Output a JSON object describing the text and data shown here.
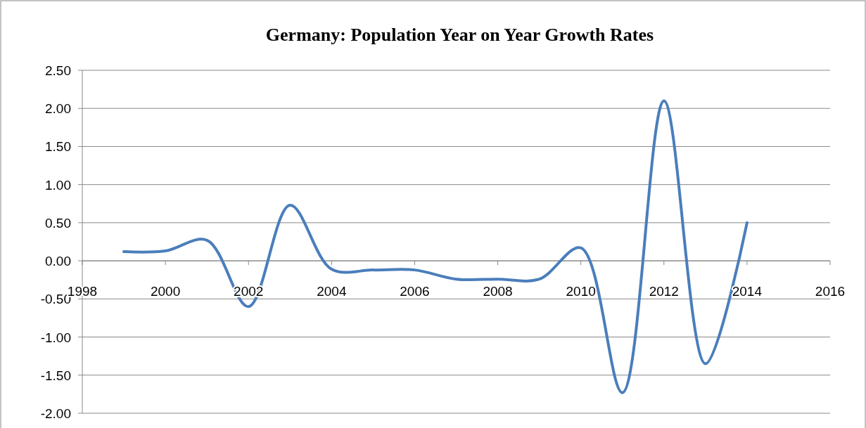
{
  "chart_data": {
    "type": "line",
    "title": "Germany: Population Year on Year Growth Rates",
    "x": [
      1999,
      2000,
      2001,
      2002,
      2003,
      2004,
      2005,
      2006,
      2007,
      2008,
      2009,
      2010,
      2011,
      2012,
      2013,
      2014
    ],
    "series": [
      {
        "color": "#4a7ebb",
        "values": [
          0.12,
          0.13,
          0.27,
          -0.6,
          0.73,
          -0.11,
          -0.12,
          -0.12,
          -0.24,
          -0.24,
          -0.24,
          0.17,
          -1.73,
          2.1,
          -1.35,
          0.5
        ]
      }
    ],
    "xlim": [
      1998,
      2016
    ],
    "xticks": [
      1998,
      2000,
      2002,
      2004,
      2006,
      2008,
      2010,
      2012,
      2014,
      2016
    ],
    "ylim": [
      -2,
      2.5
    ],
    "yticks": [
      {
        "value": -2,
        "label": "-2.00"
      },
      {
        "value": -1.5,
        "label": "-1.50"
      },
      {
        "value": -1,
        "label": "-1.00"
      },
      {
        "value": -0.5,
        "label": "-0.50"
      },
      {
        "value": 0,
        "label": "0.00"
      },
      {
        "value": 0.5,
        "label": "0.50"
      },
      {
        "value": 1,
        "label": "1.00"
      },
      {
        "value": 1.5,
        "label": "1.50"
      },
      {
        "value": 2,
        "label": "2.00"
      },
      {
        "value": 2.5,
        "label": "2.50"
      }
    ],
    "grid": "y",
    "marker": "none",
    "line_style": "solid"
  }
}
